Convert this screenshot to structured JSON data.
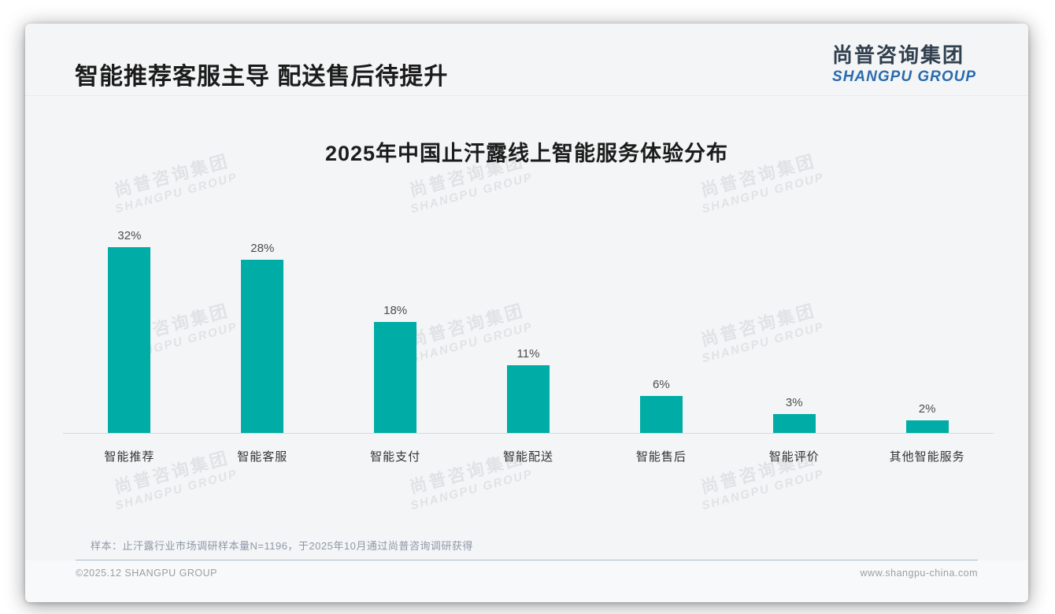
{
  "slide": {
    "header": {
      "title": "智能推荐客服主导 配送售后待提升"
    },
    "logo": {
      "name_cn": "尚普咨询集团",
      "name_en": "SHANGPU GROUP"
    },
    "watermark": {
      "line1": "尚普咨询集团",
      "line2": "SHANGPU GROUP"
    },
    "footnote": "样本：止汗露行业市场调研样本量N=1196，于2025年10月通过尚普咨询调研获得",
    "footer": {
      "copyright": "©2025.12 SHANGPU GROUP",
      "website": "www.shangpu-china.com"
    }
  },
  "chart_data": {
    "type": "bar",
    "title": "2025年中国止汗露线上智能服务体验分布",
    "categories": [
      "智能推荐",
      "智能客服",
      "智能支付",
      "智能配送",
      "智能售后",
      "智能评价",
      "其他智能服务"
    ],
    "values": [
      32,
      28,
      18,
      11,
      6,
      3,
      2
    ],
    "data_labels": [
      "32%",
      "28%",
      "18%",
      "11%",
      "6%",
      "3%",
      "2%"
    ],
    "unit": "%",
    "ylim": [
      0,
      33
    ],
    "grid": false,
    "legend": "none",
    "orientation": "vertical",
    "bar_color": "#00ACA6"
  },
  "colors": {
    "accent_teal": "#00ACA6",
    "logo_blue": "#2A6BAD",
    "logo_dark": "#31404F",
    "title_dark": "#1B1B1B",
    "footnote_gray": "#8E98A9"
  }
}
